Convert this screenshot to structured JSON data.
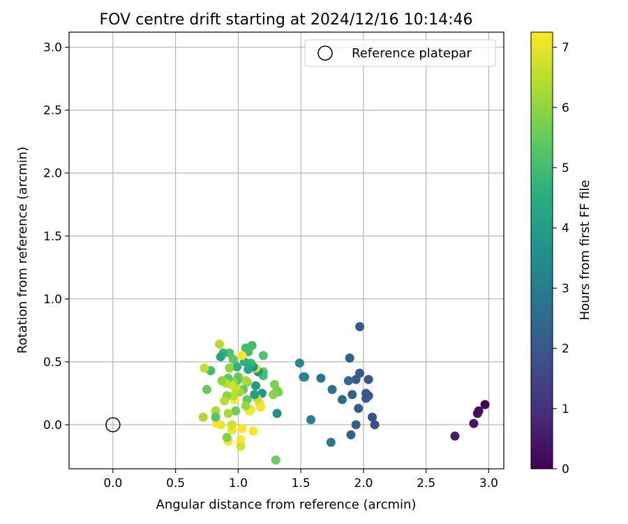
{
  "chart_data": {
    "type": "scatter",
    "title": "FOV centre drift starting at 2024/12/16 10:14:46",
    "xlabel": "Angular distance from reference (arcmin)",
    "ylabel": "Rotation from reference (arcmin)",
    "xlim": [
      -0.35,
      3.12
    ],
    "ylim": [
      -0.35,
      3.12
    ],
    "xticks": [
      "0.0",
      "0.5",
      "1.0",
      "1.5",
      "2.0",
      "2.5",
      "3.0"
    ],
    "yticks": [
      "0.0",
      "0.5",
      "1.0",
      "1.5",
      "2.0",
      "2.5",
      "3.0"
    ],
    "grid": true,
    "legend": {
      "placement": "top-right",
      "entries": [
        "Reference platepar"
      ]
    },
    "reference_point": {
      "x": 0.0,
      "y": 0.0
    },
    "colorbar": {
      "label": "Hours from first FF file",
      "colormap": "viridis",
      "range": [
        0,
        7.25
      ],
      "ticks": [
        "0",
        "1",
        "2",
        "3",
        "4",
        "5",
        "6",
        "7"
      ]
    },
    "points": [
      {
        "x": 2.97,
        "y": 0.16,
        "c": 0.1
      },
      {
        "x": 2.92,
        "y": 0.11,
        "c": 0.2
      },
      {
        "x": 2.91,
        "y": 0.09,
        "c": 0.3
      },
      {
        "x": 2.88,
        "y": 0.01,
        "c": 0.4
      },
      {
        "x": 2.73,
        "y": -0.09,
        "c": 0.6
      },
      {
        "x": 2.09,
        "y": 0.0,
        "c": 1.7
      },
      {
        "x": 2.07,
        "y": 0.06,
        "c": 1.8
      },
      {
        "x": 2.04,
        "y": 0.36,
        "c": 1.9
      },
      {
        "x": 2.04,
        "y": 0.23,
        "c": 1.9
      },
      {
        "x": 2.02,
        "y": 0.25,
        "c": 1.9
      },
      {
        "x": 2.02,
        "y": 0.21,
        "c": 2.0
      },
      {
        "x": 1.97,
        "y": 0.78,
        "c": 2.0
      },
      {
        "x": 1.97,
        "y": 0.41,
        "c": 2.0
      },
      {
        "x": 1.96,
        "y": 0.13,
        "c": 2.1
      },
      {
        "x": 1.94,
        "y": 0.36,
        "c": 2.1
      },
      {
        "x": 1.94,
        "y": 0.0,
        "c": 2.2
      },
      {
        "x": 1.91,
        "y": 0.24,
        "c": 2.2
      },
      {
        "x": 1.9,
        "y": -0.08,
        "c": 2.3
      },
      {
        "x": 1.89,
        "y": 0.53,
        "c": 2.2
      },
      {
        "x": 1.88,
        "y": 0.35,
        "c": 2.4
      },
      {
        "x": 1.83,
        "y": 0.2,
        "c": 2.5
      },
      {
        "x": 1.75,
        "y": 0.28,
        "c": 2.7
      },
      {
        "x": 1.74,
        "y": -0.14,
        "c": 2.9
      },
      {
        "x": 1.66,
        "y": 0.37,
        "c": 2.8
      },
      {
        "x": 1.58,
        "y": 0.04,
        "c": 3.2
      },
      {
        "x": 1.53,
        "y": 0.38,
        "c": 3.3
      },
      {
        "x": 1.52,
        "y": 0.38,
        "c": 3.3
      },
      {
        "x": 1.49,
        "y": 0.49,
        "c": 3.4
      },
      {
        "x": 1.31,
        "y": 0.09,
        "c": 3.6
      },
      {
        "x": 1.3,
        "y": -0.28,
        "c": 5.6
      },
      {
        "x": 1.31,
        "y": 0.27,
        "c": 5.4
      },
      {
        "x": 1.29,
        "y": 0.32,
        "c": 5.8
      },
      {
        "x": 1.32,
        "y": 0.26,
        "c": 5.7
      },
      {
        "x": 1.28,
        "y": 0.24,
        "c": 5.9
      },
      {
        "x": 1.2,
        "y": 0.55,
        "c": 5.2
      },
      {
        "x": 1.2,
        "y": 0.42,
        "c": 5.3
      },
      {
        "x": 1.2,
        "y": 0.39,
        "c": 5.1
      },
      {
        "x": 1.19,
        "y": 0.25,
        "c": 3.8
      },
      {
        "x": 1.17,
        "y": 0.17,
        "c": 6.9
      },
      {
        "x": 1.18,
        "y": 0.14,
        "c": 7.1
      },
      {
        "x": 1.16,
        "y": 0.42,
        "c": 3.9
      },
      {
        "x": 1.15,
        "y": 0.21,
        "c": 6.7
      },
      {
        "x": 1.14,
        "y": 0.31,
        "c": 4.0
      },
      {
        "x": 1.14,
        "y": 0.45,
        "c": 6.8
      },
      {
        "x": 1.12,
        "y": 0.46,
        "c": 3.8
      },
      {
        "x": 1.13,
        "y": 0.24,
        "c": 4.1
      },
      {
        "x": 1.12,
        "y": -0.05,
        "c": 7.2
      },
      {
        "x": 1.11,
        "y": 0.63,
        "c": 5.0
      },
      {
        "x": 1.1,
        "y": 0.49,
        "c": 4.8
      },
      {
        "x": 1.1,
        "y": 0.12,
        "c": 6.9
      },
      {
        "x": 1.09,
        "y": 0.11,
        "c": 7.2
      },
      {
        "x": 1.08,
        "y": 0.44,
        "c": 4.4
      },
      {
        "x": 1.08,
        "y": 0.58,
        "c": 5.0
      },
      {
        "x": 1.07,
        "y": 0.34,
        "c": 5.8
      },
      {
        "x": 1.07,
        "y": 0.2,
        "c": 5.5
      },
      {
        "x": 1.06,
        "y": 0.15,
        "c": 6.1
      },
      {
        "x": 1.06,
        "y": 0.35,
        "c": 6.3
      },
      {
        "x": 1.06,
        "y": 0.61,
        "c": 5.0
      },
      {
        "x": 1.05,
        "y": 0.5,
        "c": 4.6
      },
      {
        "x": 1.04,
        "y": 0.28,
        "c": 5.5
      },
      {
        "x": 1.03,
        "y": 0.55,
        "c": 7.2
      },
      {
        "x": 1.03,
        "y": -0.03,
        "c": 7.2
      },
      {
        "x": 1.02,
        "y": -0.12,
        "c": 7.2
      },
      {
        "x": 1.02,
        "y": -0.17,
        "c": 6.8
      },
      {
        "x": 1.01,
        "y": 0.26,
        "c": 6.2
      },
      {
        "x": 1.0,
        "y": 0.38,
        "c": 5.6
      },
      {
        "x": 0.99,
        "y": 0.46,
        "c": 4.6
      },
      {
        "x": 0.99,
        "y": 0.35,
        "c": 5.3
      },
      {
        "x": 0.98,
        "y": 0.29,
        "c": 6.6
      },
      {
        "x": 0.98,
        "y": 0.11,
        "c": 5.6
      },
      {
        "x": 0.97,
        "y": 0.2,
        "c": 7.2
      },
      {
        "x": 0.96,
        "y": 0.52,
        "c": 5.4
      },
      {
        "x": 0.96,
        "y": 0.34,
        "c": 6.1
      },
      {
        "x": 0.96,
        "y": 0.23,
        "c": 6.5
      },
      {
        "x": 0.95,
        "y": -0.04,
        "c": 7.1
      },
      {
        "x": 0.95,
        "y": 0.0,
        "c": 6.8
      },
      {
        "x": 0.94,
        "y": 0.32,
        "c": 6.8
      },
      {
        "x": 0.93,
        "y": 0.57,
        "c": 5.2
      },
      {
        "x": 0.93,
        "y": 0.45,
        "c": 6.0
      },
      {
        "x": 0.92,
        "y": 0.37,
        "c": 5.4
      },
      {
        "x": 0.92,
        "y": 0.09,
        "c": 6.3
      },
      {
        "x": 0.92,
        "y": -0.13,
        "c": 7.2
      },
      {
        "x": 0.91,
        "y": 0.23,
        "c": 5.9
      },
      {
        "x": 0.91,
        "y": -0.1,
        "c": 5.8
      },
      {
        "x": 0.9,
        "y": 0.33,
        "c": 6.5
      },
      {
        "x": 0.89,
        "y": 0.19,
        "c": 6.4
      },
      {
        "x": 0.88,
        "y": 0.57,
        "c": 4.7
      },
      {
        "x": 0.87,
        "y": 0.35,
        "c": 6.0
      },
      {
        "x": 0.86,
        "y": 0.54,
        "c": 4.2
      },
      {
        "x": 0.85,
        "y": 0.64,
        "c": 6.4
      },
      {
        "x": 0.86,
        "y": 0.0,
        "c": 7.2
      },
      {
        "x": 0.83,
        "y": 0.01,
        "c": 7.2
      },
      {
        "x": 0.82,
        "y": 0.11,
        "c": 6.3
      },
      {
        "x": 0.82,
        "y": 0.06,
        "c": 5.3
      },
      {
        "x": 0.78,
        "y": 0.43,
        "c": 5.0
      },
      {
        "x": 0.75,
        "y": 0.28,
        "c": 5.6
      },
      {
        "x": 0.73,
        "y": 0.45,
        "c": 6.6
      },
      {
        "x": 0.72,
        "y": 0.06,
        "c": 6.3
      }
    ]
  }
}
